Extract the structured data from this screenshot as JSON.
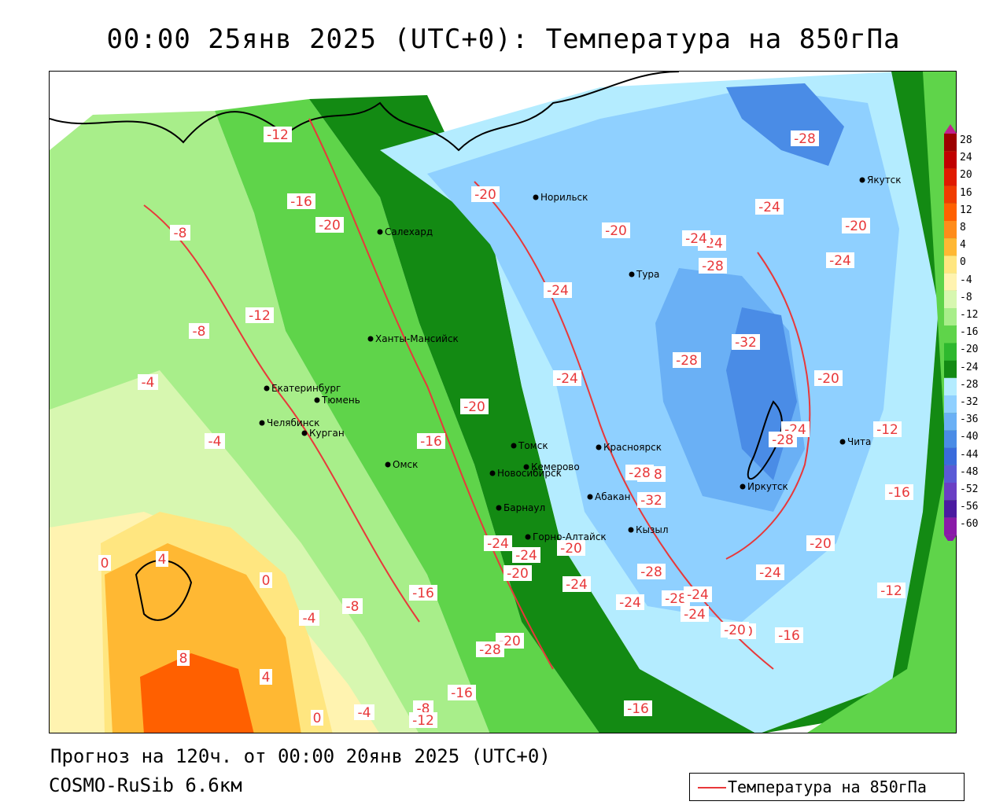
{
  "title": "00:00 25янв 2025 (UTC+0): Температура на 850гПа",
  "footer": {
    "forecast": "Прогноз на 120ч. от 00:00 20янв 2025 (UTC+0)",
    "model": "COSMO-RuSib 6.6км"
  },
  "legend": {
    "label": "Температура на 850гПа",
    "line_color": "#e8383a"
  },
  "color_scale": {
    "labels": [
      "28",
      "24",
      "20",
      "16",
      "12",
      "8",
      "4",
      "0",
      "-4",
      "-8",
      "-12",
      "-16",
      "-20",
      "-24",
      "-28",
      "-32",
      "-36",
      "-40",
      "-44",
      "-48",
      "-52",
      "-56",
      "-60"
    ],
    "colors": [
      "#9c0000",
      "#c00000",
      "#e01a00",
      "#f03c00",
      "#ff6000",
      "#ff8c1a",
      "#ffb833",
      "#ffe680",
      "#fff3b0",
      "#d7f7b0",
      "#a8ee8a",
      "#5fd44a",
      "#2eb82e",
      "#138a13",
      "#b4ecff",
      "#8fd0ff",
      "#6ab0f5",
      "#4a8ce6",
      "#3a6bdc",
      "#5a5ad6",
      "#6a3fc4",
      "#4a1aa0",
      "#8a1aa8"
    ]
  },
  "cities": [
    {
      "name": "Норильск"
    },
    {
      "name": "Якутск"
    },
    {
      "name": "Салехард"
    },
    {
      "name": "Тура"
    },
    {
      "name": "Ханты-Мансийск"
    },
    {
      "name": "Екатеринбург"
    },
    {
      "name": "Тюмень"
    },
    {
      "name": "Челябинск"
    },
    {
      "name": "Курган"
    },
    {
      "name": "Омск"
    },
    {
      "name": "Новосибирск"
    },
    {
      "name": "Томск"
    },
    {
      "name": "Кемерово"
    },
    {
      "name": "Красноярск"
    },
    {
      "name": "Барнаул"
    },
    {
      "name": "Абакан"
    },
    {
      "name": "Горно-Алтайск"
    },
    {
      "name": "Кызыл"
    },
    {
      "name": "Иркутск"
    },
    {
      "name": "Чита"
    }
  ],
  "isotherm_labels": [
    "-12",
    "-16",
    "-20",
    "-8",
    "-12",
    "-8",
    "-4",
    "-4",
    "-20",
    "-20",
    "-24",
    "-28",
    "-24",
    "-20",
    "-24",
    "-24",
    "-28",
    "-24",
    "-24",
    "-32",
    "-28",
    "-20",
    "-24",
    "-28",
    "-20",
    "-16",
    "-28",
    "-32",
    "-20",
    "-28",
    "-16",
    "-16",
    "-20",
    "-20",
    "-24",
    "-24",
    "-24",
    "-28",
    "-24",
    "-24",
    "-20",
    "-20",
    "-16",
    "-12",
    "0",
    "4",
    "0",
    "-4",
    "-8",
    "8",
    "4",
    "-4",
    "-8",
    "-12",
    "-16",
    "-20",
    "-16",
    "-12",
    "0",
    "-20",
    "-24",
    "-28",
    "-28",
    "-24"
  ]
}
